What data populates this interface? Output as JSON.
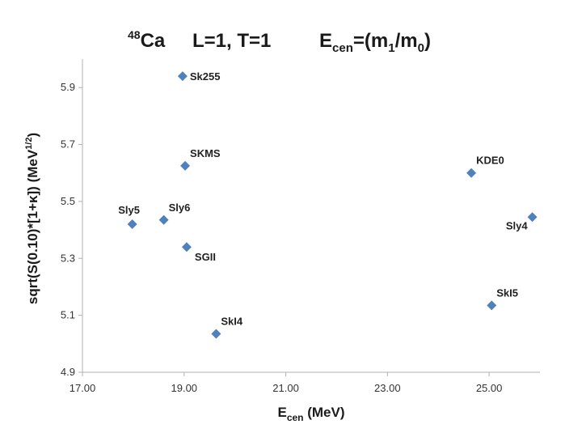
{
  "chart_data": {
    "type": "scatter",
    "title": {
      "nucleus_sup": "48",
      "nucleus": "Ca",
      "quantum": "L=1, T=1",
      "ecen_main": "E",
      "ecen_sub": "cen",
      "ecen_eq": "=(m",
      "m1_sub": "1",
      "slash": "/m",
      "m0_sub": "0",
      "close": ")"
    },
    "xlabel": {
      "main": "E",
      "sub": "cen",
      "rest": " (MeV)"
    },
    "ylabel": {
      "main": "sqrt(S(0.10)*[1+κ]) (MeV",
      "sup": "1/2",
      "close": ")"
    },
    "xlim": [
      17,
      26
    ],
    "ylim": [
      4.9,
      6.0
    ],
    "xticks": [
      17,
      19,
      21,
      23,
      25
    ],
    "xtick_labels": [
      "17.00",
      "19.00",
      "21.00",
      "23.00",
      "25.00"
    ],
    "yticks": [
      4.9,
      5.1,
      5.3,
      5.5,
      5.7,
      5.9
    ],
    "ytick_labels": [
      "4.9",
      "5.1",
      "5.3",
      "5.5",
      "5.7",
      "5.9"
    ],
    "marker_color": "#4f81bd",
    "points": [
      {
        "label": "Sk255",
        "x": 18.97,
        "y": 5.94,
        "pos": "right"
      },
      {
        "label": "SKMS",
        "x": 19.02,
        "y": 5.625,
        "pos": "above-right"
      },
      {
        "label": "KDE0",
        "x": 24.65,
        "y": 5.6,
        "pos": "above-right"
      },
      {
        "label": "Sly5",
        "x": 17.98,
        "y": 5.42,
        "pos": "above"
      },
      {
        "label": "Sly6",
        "x": 18.6,
        "y": 5.435,
        "pos": "above-right"
      },
      {
        "label": "SGII",
        "x": 19.05,
        "y": 5.34,
        "pos": "below-right"
      },
      {
        "label": "Sly4",
        "x": 25.85,
        "y": 5.445,
        "pos": "below-left"
      },
      {
        "label": "SkI5",
        "x": 25.05,
        "y": 5.135,
        "pos": "above-right"
      },
      {
        "label": "SkI4",
        "x": 19.63,
        "y": 5.035,
        "pos": "above-right"
      }
    ]
  }
}
